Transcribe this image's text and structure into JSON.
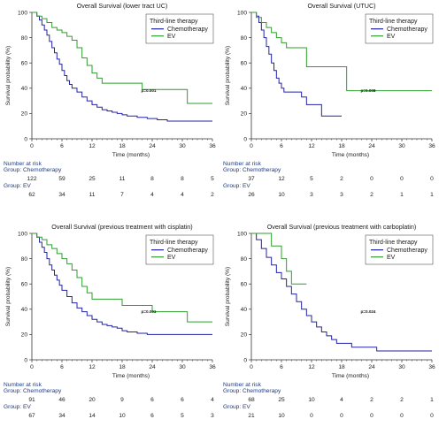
{
  "colors": {
    "chemotherapy": "#2323a6",
    "ev": "#2e9e2e",
    "axis": "#333333"
  },
  "common": {
    "y_label": "Survival probability (%)",
    "x_label": "Time (months)",
    "legend_title": "Third-line therapy",
    "risk_title": "Number at risk",
    "x_ticks": [
      0,
      6,
      12,
      18,
      24,
      30,
      36
    ],
    "y_ticks": [
      0,
      20,
      40,
      60,
      80,
      100
    ]
  },
  "chart_data": [
    {
      "type": "line",
      "title": "Overall Survival (lower tract UC)",
      "p_value": "p=0.001",
      "xlim": [
        0,
        36
      ],
      "ylim": [
        0,
        100
      ],
      "legend_position": "top-right",
      "series": [
        {
          "name": "Chemotherapy",
          "group_label": "Group: Chemotherapy",
          "steps": [
            [
              0,
              100
            ],
            [
              1,
              97
            ],
            [
              1.5,
              94
            ],
            [
              2,
              90
            ],
            [
              2.5,
              86
            ],
            [
              3,
              82
            ],
            [
              3.5,
              77
            ],
            [
              4,
              72
            ],
            [
              4.5,
              68
            ],
            [
              5,
              63
            ],
            [
              5.5,
              59
            ],
            [
              6,
              54
            ],
            [
              6.5,
              50
            ],
            [
              7,
              46
            ],
            [
              7.5,
              43
            ],
            [
              8,
              40
            ],
            [
              9,
              37
            ],
            [
              10,
              33
            ],
            [
              11,
              30
            ],
            [
              12,
              27
            ],
            [
              13,
              25
            ],
            [
              14,
              23
            ],
            [
              15,
              22
            ],
            [
              16,
              21
            ],
            [
              17,
              20
            ],
            [
              18,
              19
            ],
            [
              19,
              18
            ],
            [
              21,
              17
            ],
            [
              23,
              16
            ],
            [
              25,
              15
            ],
            [
              27,
              14
            ],
            [
              36,
              14
            ]
          ],
          "at_risk": [
            122,
            59,
            25,
            11,
            8,
            8,
            5
          ]
        },
        {
          "name": "EV",
          "group_label": "Group: EV",
          "steps": [
            [
              0,
              100
            ],
            [
              1,
              97
            ],
            [
              2,
              95
            ],
            [
              3,
              92
            ],
            [
              4,
              88
            ],
            [
              5,
              86
            ],
            [
              6,
              84
            ],
            [
              7,
              81
            ],
            [
              8,
              78
            ],
            [
              9,
              72
            ],
            [
              10,
              64
            ],
            [
              11,
              58
            ],
            [
              12,
              52
            ],
            [
              13,
              48
            ],
            [
              14,
              44
            ],
            [
              22,
              39
            ],
            [
              31,
              28
            ],
            [
              36,
              28
            ]
          ],
          "at_risk": [
            62,
            34,
            11,
            7,
            4,
            4,
            2
          ]
        }
      ]
    },
    {
      "type": "line",
      "title": "Overall Survival (UTUC)",
      "p_value": "p=0.008",
      "xlim": [
        0,
        36
      ],
      "ylim": [
        0,
        100
      ],
      "legend_position": "top-right",
      "series": [
        {
          "name": "Chemotherapy",
          "group_label": "Group: Chemotherapy",
          "steps": [
            [
              0,
              100
            ],
            [
              1,
              97
            ],
            [
              1.5,
              92
            ],
            [
              2,
              86
            ],
            [
              2.5,
              80
            ],
            [
              3,
              73
            ],
            [
              3.5,
              67
            ],
            [
              4,
              60
            ],
            [
              4.5,
              54
            ],
            [
              5,
              48
            ],
            [
              5.5,
              44
            ],
            [
              6,
              40
            ],
            [
              6.5,
              37
            ],
            [
              10,
              33
            ],
            [
              11,
              27
            ],
            [
              14,
              18
            ],
            [
              18,
              18
            ]
          ],
          "at_risk": [
            37,
            12,
            5,
            2,
            0,
            0,
            0
          ]
        },
        {
          "name": "EV",
          "group_label": "Group: EV",
          "steps": [
            [
              0,
              100
            ],
            [
              1,
              96
            ],
            [
              2,
              92
            ],
            [
              3,
              88
            ],
            [
              4,
              84
            ],
            [
              5,
              80
            ],
            [
              6,
              76
            ],
            [
              7,
              72
            ],
            [
              11,
              57
            ],
            [
              19,
              38
            ],
            [
              36,
              38
            ]
          ],
          "at_risk": [
            26,
            10,
            3,
            3,
            2,
            1,
            1
          ]
        }
      ]
    },
    {
      "type": "line",
      "title": "Overall Survival (previous treatment with cisplatin)",
      "p_value": "p=0.001",
      "xlim": [
        0,
        36
      ],
      "ylim": [
        0,
        100
      ],
      "legend_position": "top-right",
      "series": [
        {
          "name": "Chemotherapy",
          "group_label": "Group: Chemotherapy",
          "steps": [
            [
              0,
              100
            ],
            [
              1,
              97
            ],
            [
              1.5,
              93
            ],
            [
              2,
              89
            ],
            [
              2.5,
              85
            ],
            [
              3,
              80
            ],
            [
              3.5,
              75
            ],
            [
              4,
              71
            ],
            [
              4.5,
              67
            ],
            [
              5,
              63
            ],
            [
              5.5,
              59
            ],
            [
              6,
              55
            ],
            [
              7,
              50
            ],
            [
              8,
              45
            ],
            [
              9,
              41
            ],
            [
              10,
              38
            ],
            [
              11,
              35
            ],
            [
              12,
              32
            ],
            [
              13,
              30
            ],
            [
              14,
              28
            ],
            [
              15,
              27
            ],
            [
              16,
              26
            ],
            [
              17,
              25
            ],
            [
              18,
              23
            ],
            [
              19,
              22
            ],
            [
              21,
              21
            ],
            [
              23,
              20
            ],
            [
              36,
              20
            ]
          ],
          "at_risk": [
            91,
            46,
            20,
            9,
            6,
            6,
            4
          ]
        },
        {
          "name": "EV",
          "group_label": "Group: EV",
          "steps": [
            [
              0,
              100
            ],
            [
              1,
              97
            ],
            [
              2,
              95
            ],
            [
              3,
              91
            ],
            [
              4,
              88
            ],
            [
              5,
              84
            ],
            [
              6,
              80
            ],
            [
              7,
              76
            ],
            [
              8,
              71
            ],
            [
              9,
              65
            ],
            [
              10,
              58
            ],
            [
              11,
              53
            ],
            [
              12,
              48
            ],
            [
              18,
              43
            ],
            [
              24,
              38
            ],
            [
              31,
              30
            ],
            [
              36,
              30
            ]
          ],
          "at_risk": [
            67,
            34,
            14,
            10,
            6,
            5,
            3
          ]
        }
      ]
    },
    {
      "type": "line",
      "title": "Overall Survival (previous treatment with carboplatin)",
      "p_value": "p=0.024",
      "xlim": [
        0,
        36
      ],
      "ylim": [
        0,
        100
      ],
      "legend_position": "top-right",
      "series": [
        {
          "name": "Chemotherapy",
          "group_label": "Group: Chemotherapy",
          "steps": [
            [
              0,
              100
            ],
            [
              1,
              95
            ],
            [
              2,
              88
            ],
            [
              3,
              81
            ],
            [
              4,
              75
            ],
            [
              5,
              69
            ],
            [
              6,
              64
            ],
            [
              7,
              58
            ],
            [
              8,
              52
            ],
            [
              9,
              46
            ],
            [
              10,
              40
            ],
            [
              11,
              35
            ],
            [
              12,
              30
            ],
            [
              13,
              26
            ],
            [
              14,
              22
            ],
            [
              15,
              19
            ],
            [
              16,
              16
            ],
            [
              17,
              13
            ],
            [
              20,
              10
            ],
            [
              25,
              7
            ],
            [
              36,
              7
            ]
          ],
          "at_risk": [
            68,
            25,
            10,
            4,
            2,
            2,
            1
          ]
        },
        {
          "name": "EV",
          "group_label": "Group: EV",
          "steps": [
            [
              0,
              100
            ],
            [
              4,
              90
            ],
            [
              6,
              80
            ],
            [
              7,
              70
            ],
            [
              8,
              60
            ],
            [
              11,
              60
            ]
          ],
          "at_risk": [
            21,
            10,
            0,
            0,
            0,
            0,
            0
          ]
        }
      ]
    }
  ]
}
